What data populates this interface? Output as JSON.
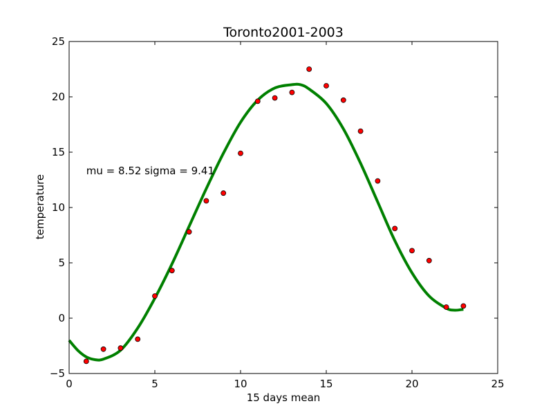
{
  "chart_data": {
    "type": "scatter",
    "title": "Toronto2001-2003",
    "xlabel": "15 days mean",
    "ylabel": "temperature",
    "xlim": [
      0,
      25
    ],
    "ylim": [
      -5,
      25
    ],
    "xticks": [
      0,
      5,
      10,
      15,
      20,
      25
    ],
    "yticks": [
      -5,
      0,
      5,
      10,
      15,
      20,
      25
    ],
    "xtick_labels": [
      "0",
      "5",
      "10",
      "15",
      "20",
      "25"
    ],
    "ytick_labels": [
      "−5",
      "0",
      "5",
      "10",
      "15",
      "20",
      "25"
    ],
    "grid": false,
    "annotation": "mu = 8.52 sigma = 9.41",
    "series": [
      {
        "type": "scatter",
        "color": "#ff0000",
        "x": [
          1,
          2,
          3,
          4,
          5,
          6,
          7,
          8,
          9,
          10,
          11,
          12,
          13,
          14,
          15,
          16,
          17,
          18,
          19,
          20,
          21,
          22,
          23
        ],
        "y": [
          -3.9,
          -2.8,
          -2.7,
          -1.9,
          2.0,
          4.3,
          7.8,
          10.6,
          11.3,
          14.9,
          19.6,
          19.9,
          20.4,
          22.5,
          21.0,
          19.7,
          16.9,
          12.4,
          8.1,
          6.1,
          5.2,
          1.0,
          1.1
        ]
      },
      {
        "type": "line",
        "color": "#008000",
        "x": [
          0,
          0.5,
          1,
          1.5,
          2,
          3,
          4,
          5,
          6,
          7,
          8,
          9,
          10,
          11,
          12,
          13,
          13.5,
          14,
          15,
          16,
          17,
          18,
          19,
          20,
          21,
          22,
          22.5,
          23
        ],
        "y": [
          -2.0,
          -2.9,
          -3.5,
          -3.75,
          -3.7,
          -2.9,
          -0.9,
          1.8,
          4.9,
          8.3,
          11.7,
          14.9,
          17.7,
          19.7,
          20.8,
          21.1,
          21.1,
          20.7,
          19.4,
          17.1,
          14.0,
          10.5,
          7.0,
          4.1,
          2.0,
          0.9,
          0.72,
          0.8
        ]
      }
    ]
  }
}
